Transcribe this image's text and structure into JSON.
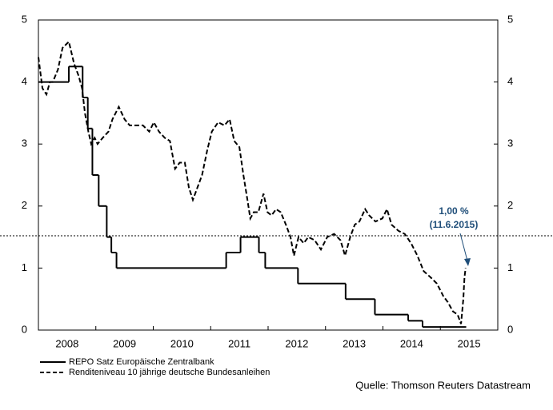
{
  "chart_data": {
    "type": "line",
    "xlim": [
      2008,
      2016
    ],
    "xticks": [
      2008,
      2009,
      2010,
      2011,
      2012,
      2013,
      2014,
      2015,
      2016
    ],
    "xticklabels": [
      {
        "value": 2008.5,
        "label": "2008"
      },
      {
        "value": 2009.5,
        "label": "2009"
      },
      {
        "value": 2010.5,
        "label": "2010"
      },
      {
        "value": 2011.5,
        "label": "2011"
      },
      {
        "value": 2012.5,
        "label": "2012"
      },
      {
        "value": 2013.5,
        "label": "2013"
      },
      {
        "value": 2014.5,
        "label": "2014"
      },
      {
        "value": 2015.5,
        "label": "2015"
      }
    ],
    "ylim": [
      0,
      5
    ],
    "yticks": [
      0,
      1,
      2,
      3,
      4,
      5
    ],
    "y2lim": [
      0,
      5
    ],
    "y2ticks": [
      0,
      1,
      2,
      3,
      4,
      5
    ],
    "grid": false,
    "series": [
      {
        "name": "REPO Satz Europäische Zentralbank",
        "color": "#000000",
        "line_style": "step",
        "x": [
          2008.0,
          2008.53,
          2008.77,
          2008.86,
          2008.94,
          2009.05,
          2009.19,
          2009.27,
          2009.36,
          2011.27,
          2011.52,
          2011.84,
          2011.95,
          2012.52,
          2013.35,
          2013.86,
          2014.44,
          2014.69,
          2015.45
        ],
        "values": [
          4.0,
          4.25,
          3.75,
          3.25,
          2.5,
          2.0,
          1.5,
          1.25,
          1.0,
          1.25,
          1.5,
          1.25,
          1.0,
          0.75,
          0.5,
          0.25,
          0.15,
          0.05,
          0.05
        ]
      },
      {
        "name": "Renditeniveau 10 jährige deutsche Bundesanleihen",
        "color": "#000000",
        "line_style": "dashed",
        "x": [
          2008.0,
          2008.07,
          2008.14,
          2008.2,
          2008.25,
          2008.34,
          2008.42,
          2008.53,
          2008.62,
          2008.7,
          2008.76,
          2008.81,
          2008.87,
          2008.92,
          2008.98,
          2009.03,
          2009.12,
          2009.22,
          2009.29,
          2009.4,
          2009.5,
          2009.59,
          2009.71,
          2009.82,
          2009.93,
          2010.01,
          2010.1,
          2010.2,
          2010.29,
          2010.38,
          2010.46,
          2010.55,
          2010.62,
          2010.69,
          2010.77,
          2010.85,
          2010.94,
          2011.02,
          2011.13,
          2011.24,
          2011.33,
          2011.41,
          2011.5,
          2011.57,
          2011.64,
          2011.69,
          2011.75,
          2011.83,
          2011.92,
          2011.99,
          2012.06,
          2012.14,
          2012.22,
          2012.31,
          2012.39,
          2012.45,
          2012.53,
          2012.62,
          2012.7,
          2012.81,
          2012.92,
          2013.03,
          2013.15,
          2013.26,
          2013.34,
          2013.43,
          2013.51,
          2013.59,
          2013.69,
          2013.76,
          2013.87,
          2013.99,
          2014.07,
          2014.15,
          2014.27,
          2014.38,
          2014.49,
          2014.6,
          2014.71,
          2014.83,
          2014.94,
          2015.05,
          2015.13,
          2015.22,
          2015.3,
          2015.36,
          2015.4,
          2015.42,
          2015.44
        ],
        "values": [
          4.4,
          3.9,
          3.8,
          4.0,
          4.0,
          4.2,
          4.55,
          4.65,
          4.3,
          4.1,
          3.9,
          3.5,
          3.2,
          3.0,
          3.1,
          3.0,
          3.1,
          3.2,
          3.4,
          3.6,
          3.4,
          3.3,
          3.3,
          3.3,
          3.2,
          3.35,
          3.2,
          3.1,
          3.05,
          2.6,
          2.7,
          2.7,
          2.3,
          2.1,
          2.3,
          2.5,
          2.9,
          3.2,
          3.35,
          3.3,
          3.4,
          3.05,
          2.95,
          2.5,
          2.1,
          1.8,
          1.9,
          1.9,
          2.2,
          1.9,
          1.85,
          1.95,
          1.9,
          1.7,
          1.5,
          1.2,
          1.5,
          1.4,
          1.5,
          1.45,
          1.3,
          1.5,
          1.55,
          1.45,
          1.2,
          1.5,
          1.7,
          1.75,
          1.95,
          1.85,
          1.75,
          1.8,
          1.95,
          1.7,
          1.6,
          1.55,
          1.4,
          1.2,
          0.95,
          0.85,
          0.75,
          0.55,
          0.45,
          0.3,
          0.25,
          0.1,
          0.5,
          0.85,
          1.0
        ]
      }
    ],
    "annotation": {
      "lines": [
        "1,00 %",
        "(11.6.2015)"
      ],
      "color": "#1f4e79"
    },
    "source": "Quelle: Thomson Reuters Datastream"
  }
}
